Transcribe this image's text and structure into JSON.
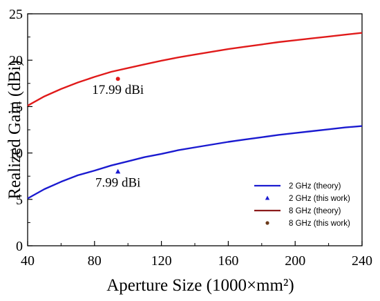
{
  "chart_data": {
    "type": "line",
    "xlabel": "Aperture Size (1000×mm²)",
    "ylabel": "Realized Gain (dBi)",
    "xlim": [
      40,
      240
    ],
    "ylim": [
      0,
      25
    ],
    "xticks": [
      40,
      80,
      120,
      160,
      200,
      240
    ],
    "yticks": [
      0,
      5,
      10,
      15,
      20,
      25
    ],
    "grid": false,
    "legend_position": "bottom-right",
    "series": [
      {
        "name": "2 GHz (theory)",
        "kind": "line",
        "color": "#1a1ad0",
        "x": [
          40,
          50,
          60,
          70,
          80,
          90,
          100,
          110,
          120,
          130,
          140,
          150,
          160,
          170,
          180,
          190,
          200,
          210,
          220,
          230,
          240
        ],
        "y": [
          5.1,
          6.1,
          6.9,
          7.6,
          8.1,
          8.65,
          9.1,
          9.55,
          9.9,
          10.3,
          10.6,
          10.9,
          11.2,
          11.45,
          11.7,
          11.95,
          12.15,
          12.35,
          12.55,
          12.75,
          12.9
        ]
      },
      {
        "name": "2 GHz (this work)",
        "kind": "marker",
        "marker": "triangle",
        "color": "#1a1ad0",
        "x": [
          94
        ],
        "y": [
          7.99
        ]
      },
      {
        "name": "8 GHz (theory)",
        "kind": "line",
        "color": "#e01a1a",
        "legend_color": "#8b1a1a",
        "x": [
          40,
          50,
          60,
          70,
          80,
          90,
          100,
          110,
          120,
          130,
          140,
          150,
          160,
          170,
          180,
          190,
          200,
          210,
          220,
          230,
          240
        ],
        "y": [
          15.1,
          16.1,
          16.9,
          17.6,
          18.2,
          18.75,
          19.15,
          19.55,
          19.95,
          20.3,
          20.6,
          20.9,
          21.2,
          21.45,
          21.7,
          21.95,
          22.15,
          22.35,
          22.55,
          22.75,
          22.95
        ]
      },
      {
        "name": "8 GHz (this work)",
        "kind": "marker",
        "marker": "circle",
        "color": "#e01a1a",
        "legend_color": "#6b3a1a",
        "x": [
          94
        ],
        "y": [
          17.99
        ]
      }
    ],
    "annotations": [
      {
        "text": "17.99 dBi",
        "x": 94,
        "y": 17.99
      },
      {
        "text": "7.99 dBi",
        "x": 94,
        "y": 7.99
      }
    ]
  }
}
